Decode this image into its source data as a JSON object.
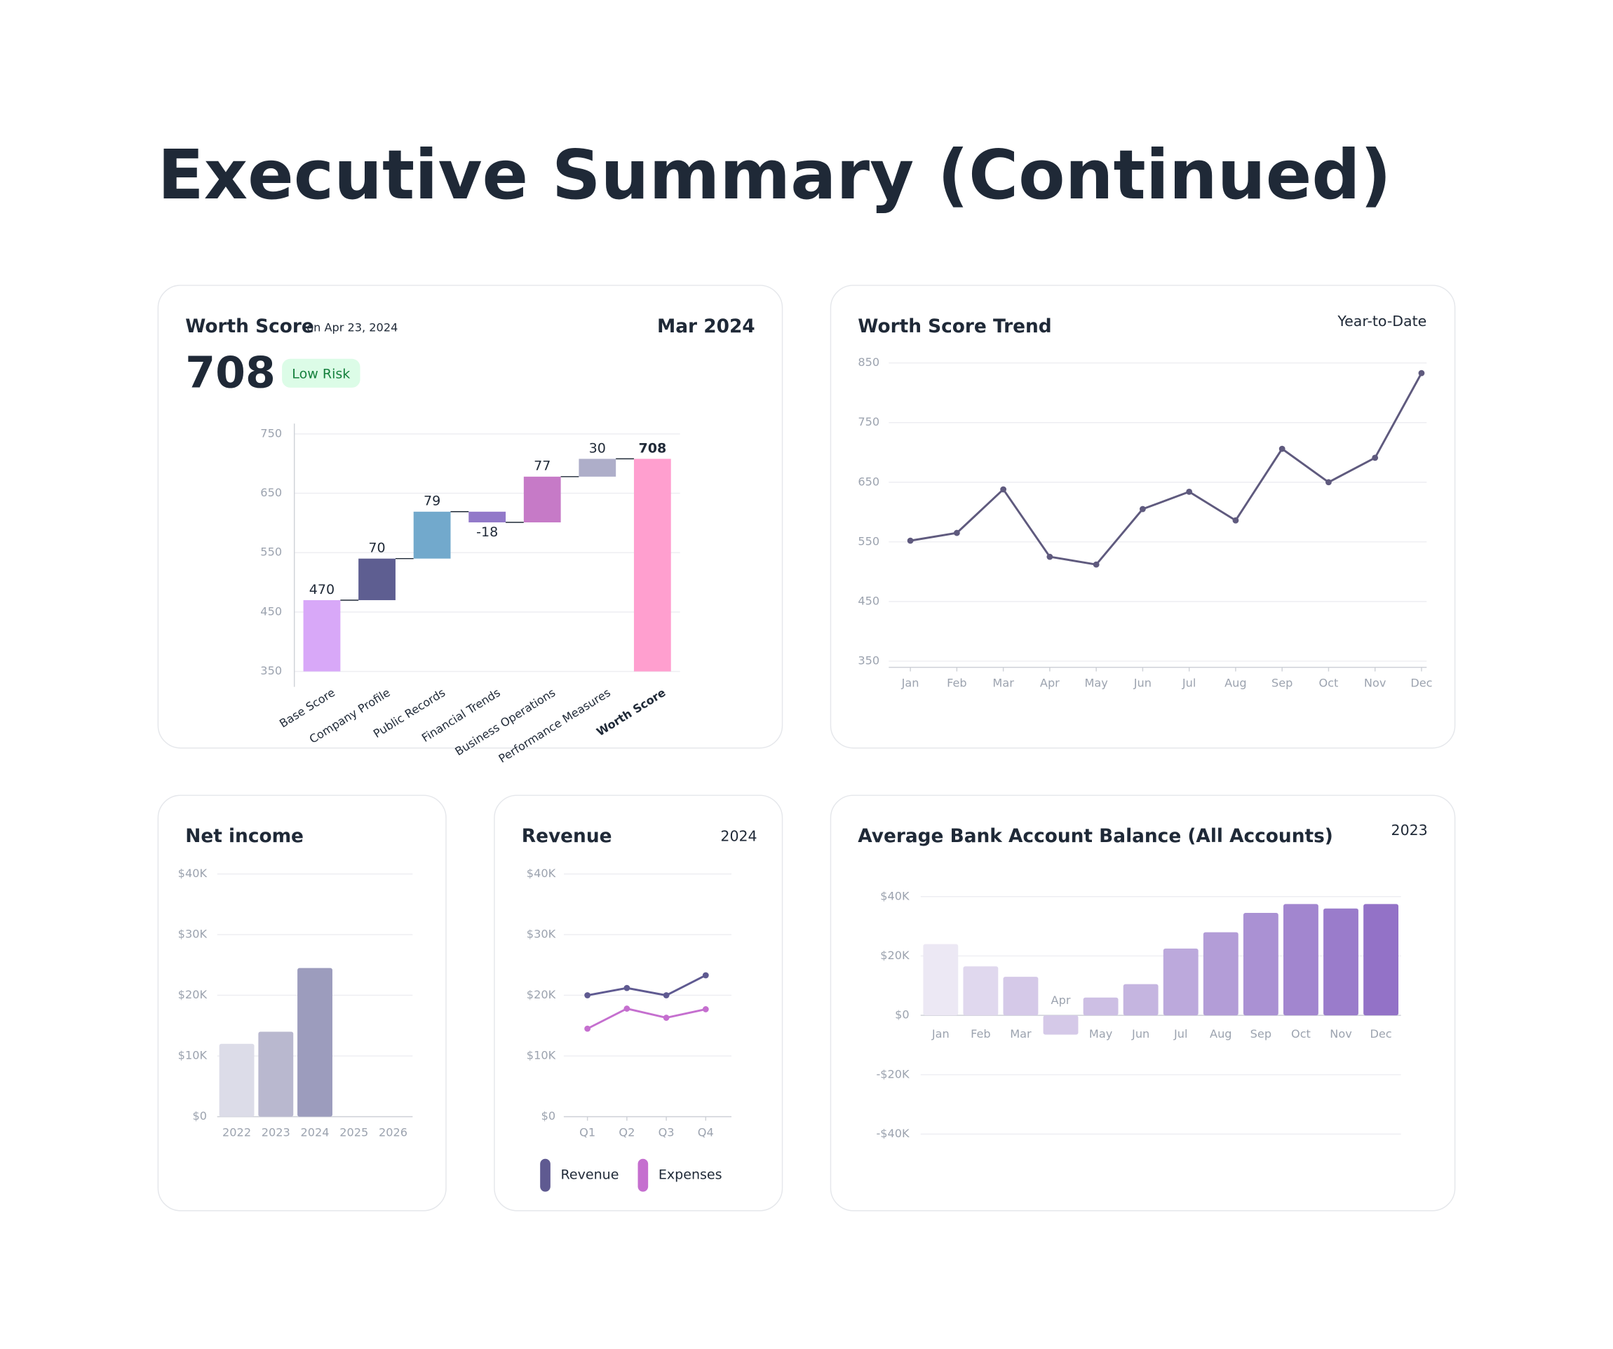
{
  "title": "Executive Summary (Continued)",
  "chart_data": [
    {
      "type": "waterfall",
      "title": "Worth Score",
      "subtitle": "on Apr 23, 2024",
      "period": "Mar 2024",
      "score": 708,
      "badge": "Low Risk",
      "categories": [
        "Base Score",
        "Company Profile",
        "Public Records",
        "Financial Trends",
        "Business Operations",
        "Performance Measures",
        "Worth Score"
      ],
      "values": [
        470,
        70,
        79,
        -18,
        77,
        30,
        708
      ],
      "colors": [
        "#d8a8f8",
        "#5e5e91",
        "#72a9cc",
        "#9279c9",
        "#c67ac7",
        "#aeaec9",
        "#ff9fcf"
      ],
      "ylim": [
        350,
        750
      ],
      "yticks": [
        350,
        450,
        550,
        650,
        750
      ],
      "grid": true
    },
    {
      "type": "line",
      "title": "Worth Score Trend",
      "period": "Year-to-Date",
      "categories": [
        "Jan",
        "Feb",
        "Mar",
        "Apr",
        "May",
        "Jun",
        "Jul",
        "Aug",
        "Sep",
        "Oct",
        "Nov",
        "Dec"
      ],
      "series": [
        {
          "color": "#5f5a7e",
          "values": [
            552,
            565,
            638,
            525,
            512,
            605,
            634,
            586,
            706,
            650,
            691,
            833
          ]
        }
      ],
      "ylim": [
        350,
        850
      ],
      "yticks": [
        350,
        450,
        550,
        650,
        750,
        850
      ],
      "grid": true
    },
    {
      "type": "bar",
      "title": "Net income",
      "categories": [
        "2022",
        "2023",
        "2024",
        "2025",
        "2026"
      ],
      "values": [
        12000,
        14000,
        24500,
        null,
        null
      ],
      "colors": [
        "#dcdce8",
        "#b9b8cf",
        "#9c9cbd",
        "#9c9cbd",
        "#9c9cbd"
      ],
      "ylim": [
        0,
        40000
      ],
      "yticks": [
        {
          "value": 0,
          "label": "$0"
        },
        {
          "value": 10000,
          "label": "$10K"
        },
        {
          "value": 20000,
          "label": "$20K"
        },
        {
          "value": 30000,
          "label": "$30K"
        },
        {
          "value": 40000,
          "label": "$40K"
        }
      ],
      "grid": true
    },
    {
      "type": "line",
      "title": "Revenue",
      "period": "2024",
      "categories": [
        "Q1",
        "Q2",
        "Q3",
        "Q4"
      ],
      "series": [
        {
          "name": "Revenue",
          "color": "#5f5a91",
          "values": [
            20000,
            21200,
            20000,
            23300
          ]
        },
        {
          "name": "Expenses",
          "color": "#c56fcf",
          "values": [
            14500,
            17800,
            16300,
            17700
          ]
        }
      ],
      "ylim": [
        0,
        40000
      ],
      "yticks": [
        {
          "value": 0,
          "label": "$0"
        },
        {
          "value": 10000,
          "label": "$10K"
        },
        {
          "value": 20000,
          "label": "$20K"
        },
        {
          "value": 30000,
          "label": "$30K"
        },
        {
          "value": 40000,
          "label": "$40K"
        }
      ],
      "grid": true,
      "legend": "bottom"
    },
    {
      "type": "bar",
      "title": "Average Bank Account Balance (All Accounts)",
      "period": "2023",
      "categories": [
        "Jan",
        "Feb",
        "Mar",
        "Apr",
        "May",
        "Jun",
        "Jul",
        "Aug",
        "Sep",
        "Oct",
        "Nov",
        "Dec"
      ],
      "values": [
        24000,
        16500,
        13000,
        -6500,
        6000,
        10500,
        22500,
        28000,
        34500,
        37500,
        36000,
        37500
      ],
      "colors": [
        "#ece8f4",
        "#e0d8ee",
        "#d5c9e8",
        "#d5c9e8",
        "#cdbfe4",
        "#c5b5e0",
        "#bca9dc",
        "#b39dd7",
        "#aa91d3",
        "#a286cf",
        "#9a7ccb",
        "#9372c7"
      ],
      "ylim": [
        -40000,
        40000
      ],
      "yticks": [
        {
          "value": -40000,
          "label": "-$40K"
        },
        {
          "value": -20000,
          "label": "-$20K"
        },
        {
          "value": 0,
          "label": "$0"
        },
        {
          "value": 20000,
          "label": "$20K"
        },
        {
          "value": 40000,
          "label": "$40K"
        }
      ],
      "grid": true
    }
  ]
}
